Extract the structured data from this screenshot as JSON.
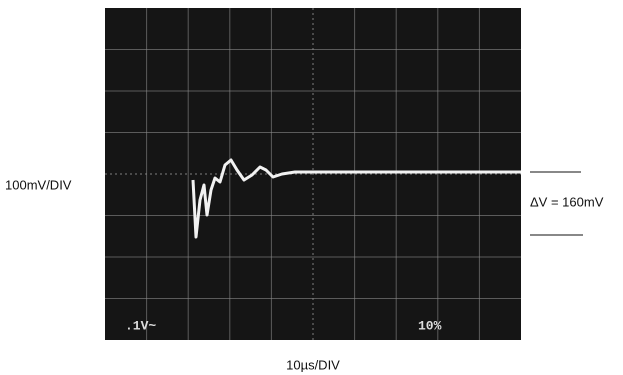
{
  "scope": {
    "vertical_scale": "100mV/DIV",
    "horizontal_scale": "10µs/DIV",
    "delta_label": "ΔV = 160mV",
    "screen_readout_left": ".1V~",
    "screen_readout_right": "10%"
  }
}
